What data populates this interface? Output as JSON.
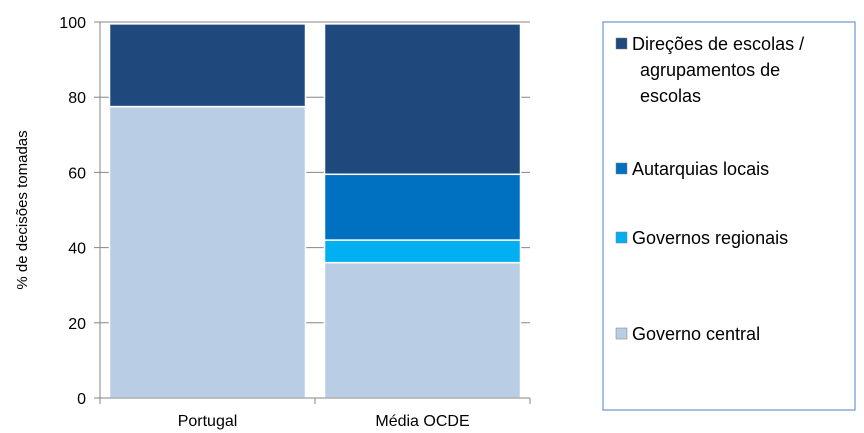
{
  "chart_data": {
    "type": "bar",
    "stacked": true,
    "categories": [
      "Portugal",
      "Média OCDE"
    ],
    "series": [
      {
        "name": "Governo central",
        "values": [
          77.5,
          36
        ],
        "color": "#B9CDE5"
      },
      {
        "name": "Governos regionais",
        "values": [
          0,
          6
        ],
        "color": "#00B0F0"
      },
      {
        "name": "Autarquias locais",
        "values": [
          0,
          17.5
        ],
        "color": "#0070C0"
      },
      {
        "name": "Direções de escolas / agrupamentos de escolas",
        "values": [
          22,
          40
        ],
        "color": "#1F497D"
      }
    ],
    "legend_order": [
      3,
      2,
      1,
      0
    ],
    "legend_lines": [
      [
        "Direções de escolas /",
        "agrupamentos de",
        "escolas"
      ],
      [
        "Autarquias locais"
      ],
      [
        "Governos regionais"
      ],
      [
        "Governo central"
      ]
    ],
    "ylabel": "% de decisões tomadas",
    "ylim": [
      0,
      100
    ],
    "yticks": [
      "0",
      "20",
      "40",
      "60",
      "80",
      "100"
    ],
    "grid": true,
    "legend_position": "right",
    "colors": {
      "gridline": "#868686",
      "axis": "#868686",
      "legend_border": "#4F81BD",
      "bar_border": "#ffffff"
    }
  }
}
